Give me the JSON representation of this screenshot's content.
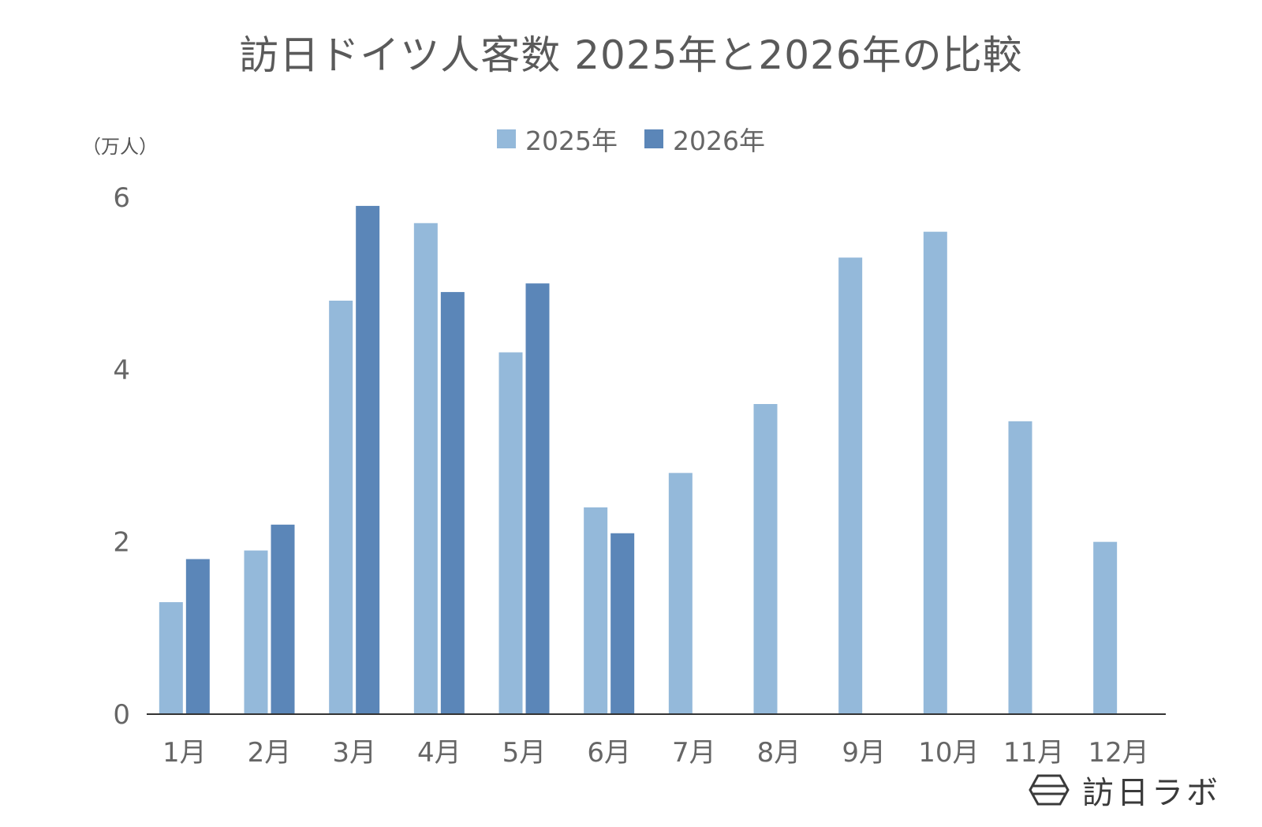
{
  "chart_data": {
    "type": "bar",
    "title": "訪日ドイツ人客数 2025年と2026年の比較",
    "ylabel": "（万人）",
    "xlabel": "",
    "categories": [
      "1月",
      "2月",
      "3月",
      "4月",
      "5月",
      "6月",
      "7月",
      "8月",
      "9月",
      "10月",
      "11月",
      "12月"
    ],
    "series": [
      {
        "name": "2025年",
        "color": "#94b9da",
        "values": [
          1.3,
          1.9,
          4.8,
          5.7,
          4.2,
          2.4,
          2.8,
          3.6,
          5.3,
          5.6,
          3.4,
          2.0
        ]
      },
      {
        "name": "2026年",
        "color": "#5b86b8",
        "values": [
          1.8,
          2.2,
          5.9,
          4.9,
          5.0,
          2.1,
          null,
          null,
          null,
          null,
          null,
          null
        ]
      }
    ],
    "ylim": [
      0,
      6
    ],
    "yticks": [
      "0",
      "2",
      "4",
      "6"
    ],
    "grid": false,
    "legend": "top-center"
  },
  "brand": {
    "name": "訪日ラボ",
    "icon": "hexagon-logo-icon"
  }
}
